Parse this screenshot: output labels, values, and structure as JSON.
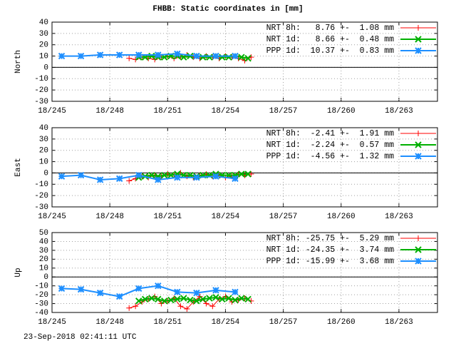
{
  "title": "FHBB: Static coordinates in [mm]",
  "footer": "23-Sep-2018 02:41:11 UTC",
  "chart_data": [
    {
      "type": "line",
      "ylabel": "North",
      "grid": true,
      "zeroaxis": true,
      "xlim": [
        245,
        265
      ],
      "ylim": [
        -30,
        40
      ],
      "xticks": [
        {
          "value": 245,
          "label": "18/245"
        },
        {
          "value": 248,
          "label": "18/248"
        },
        {
          "value": 251,
          "label": "18/251"
        },
        {
          "value": 254,
          "label": "18/254"
        },
        {
          "value": 257,
          "label": "18/257"
        },
        {
          "value": 260,
          "label": "18/260"
        },
        {
          "value": 263,
          "label": "18/263"
        }
      ],
      "yticks": [
        -30,
        -20,
        -10,
        0,
        10,
        20,
        30,
        40
      ],
      "series": [
        {
          "name": "NRT 8h:   8.76 +-  1.08 mm",
          "color": "#ff0000",
          "marker": "plus",
          "x": [
            249,
            249.33,
            249.67,
            250,
            250.33,
            250.67,
            251,
            251.33,
            251.67,
            252,
            252.33,
            252.67,
            253,
            253.33,
            253.67,
            254,
            254.33,
            254.67,
            255,
            255.33
          ],
          "values": [
            8,
            7,
            9,
            8,
            7,
            9,
            10,
            8,
            9,
            11,
            9,
            8,
            10,
            9,
            8,
            10,
            9,
            8,
            6,
            9
          ]
        },
        {
          "name": "NRT 1d:   8.66 +-  0.48 mm",
          "color": "#00b000",
          "marker": "cross",
          "x": [
            249.5,
            249.83,
            250.17,
            250.5,
            250.83,
            251.17,
            251.5,
            251.83,
            252.17,
            252.5,
            252.83,
            253.17,
            253.5,
            253.83,
            254.17,
            254.5,
            254.83,
            255.17
          ],
          "values": [
            9,
            9,
            10,
            9,
            9,
            10,
            10,
            9,
            10,
            10,
            9,
            9,
            10,
            9,
            9,
            10,
            9,
            8
          ]
        },
        {
          "name": "PPP 1d:  10.37 +-  0.83 mm",
          "color": "#1e8fff",
          "marker": "star",
          "x": [
            245.5,
            246.5,
            247.5,
            248.5,
            249.5,
            250.5,
            251.5,
            252.5,
            253.5,
            254.5
          ],
          "values": [
            10,
            10,
            11,
            11,
            11,
            11,
            12,
            10,
            10,
            10
          ]
        }
      ]
    },
    {
      "type": "line",
      "ylabel": "East",
      "grid": true,
      "zeroaxis": true,
      "xlim": [
        245,
        265
      ],
      "ylim": [
        -30,
        40
      ],
      "xticks": [
        {
          "value": 245,
          "label": "18/245"
        },
        {
          "value": 248,
          "label": "18/248"
        },
        {
          "value": 251,
          "label": "18/251"
        },
        {
          "value": 254,
          "label": "18/254"
        },
        {
          "value": 257,
          "label": "18/257"
        },
        {
          "value": 260,
          "label": "18/260"
        },
        {
          "value": 263,
          "label": "18/263"
        }
      ],
      "yticks": [
        -30,
        -20,
        -10,
        0,
        10,
        20,
        30,
        40
      ],
      "series": [
        {
          "name": "NRT 8h:  -2.41 +-  1.91 mm",
          "color": "#ff0000",
          "marker": "plus",
          "x": [
            249,
            249.33,
            249.67,
            250,
            250.33,
            250.67,
            251,
            251.33,
            251.67,
            252,
            252.33,
            252.67,
            253,
            253.33,
            253.67,
            254,
            254.33,
            254.67,
            255,
            255.33
          ],
          "values": [
            -7,
            -5,
            -3,
            -4,
            -2,
            -3,
            -1,
            -2,
            0,
            -3,
            -4,
            -2,
            -1,
            -3,
            -2,
            -4,
            -3,
            -1,
            -2,
            -1
          ]
        },
        {
          "name": "NRT 1d:  -2.24 +-  0.57 mm",
          "color": "#00b000",
          "marker": "cross",
          "x": [
            249.5,
            249.83,
            250.17,
            250.5,
            250.83,
            251.17,
            251.5,
            251.83,
            252.17,
            252.5,
            252.83,
            253.17,
            253.5,
            253.83,
            254.17,
            254.5,
            254.83,
            255.17
          ],
          "values": [
            -4,
            -3,
            -2,
            -3,
            -2,
            -2,
            -1,
            -2,
            -2,
            -3,
            -2,
            -2,
            -1,
            -2,
            -2,
            -2,
            -1,
            -1
          ]
        },
        {
          "name": "PPP 1d:  -4.56 +-  1.32 mm",
          "color": "#1e8fff",
          "marker": "star",
          "x": [
            245.5,
            246.5,
            247.5,
            248.5,
            249.5,
            250.5,
            251.5,
            252.5,
            253.5,
            254.5
          ],
          "values": [
            -3,
            -2,
            -6,
            -5,
            -2,
            -6,
            -4,
            -4,
            -3,
            -5
          ]
        }
      ]
    },
    {
      "type": "line",
      "ylabel": "Up",
      "grid": true,
      "zeroaxis": true,
      "xlim": [
        245,
        265
      ],
      "ylim": [
        -40,
        50
      ],
      "xticks": [
        {
          "value": 245,
          "label": "18/245"
        },
        {
          "value": 248,
          "label": "18/248"
        },
        {
          "value": 251,
          "label": "18/251"
        },
        {
          "value": 254,
          "label": "18/254"
        },
        {
          "value": 257,
          "label": "18/257"
        },
        {
          "value": 260,
          "label": "18/260"
        },
        {
          "value": 263,
          "label": "18/263"
        }
      ],
      "yticks": [
        -40,
        -30,
        -20,
        -10,
        0,
        10,
        20,
        30,
        40,
        50
      ],
      "series": [
        {
          "name": "NRT 8h: -25.75 +-  5.29 mm",
          "color": "#ff0000",
          "marker": "plus",
          "x": [
            249,
            249.33,
            249.67,
            250,
            250.33,
            250.67,
            251,
            251.33,
            251.67,
            252,
            252.33,
            252.67,
            253,
            253.33,
            253.67,
            254,
            254.33,
            254.67,
            255,
            255.33
          ],
          "values": [
            -35,
            -33,
            -28,
            -25,
            -22,
            -30,
            -27,
            -24,
            -33,
            -36,
            -28,
            -22,
            -30,
            -33,
            -25,
            -22,
            -28,
            -26,
            -24,
            -27
          ]
        },
        {
          "name": "NRT 1d: -24.35 +-  3.74 mm",
          "color": "#00b000",
          "marker": "cross",
          "x": [
            249.5,
            249.83,
            250.17,
            250.5,
            250.83,
            251.17,
            251.5,
            251.83,
            252.17,
            252.5,
            252.83,
            253.17,
            253.5,
            253.83,
            254.17,
            254.5,
            254.83,
            255.17
          ],
          "values": [
            -27,
            -25,
            -24,
            -25,
            -27,
            -26,
            -25,
            -24,
            -26,
            -27,
            -25,
            -24,
            -23,
            -25,
            -24,
            -26,
            -24,
            -25
          ]
        },
        {
          "name": "PPP 1d: -15.99 +-  3.68 mm",
          "color": "#1e8fff",
          "marker": "star",
          "x": [
            245.5,
            246.5,
            247.5,
            248.5,
            249.5,
            250.5,
            251.5,
            252.5,
            253.5,
            254.5
          ],
          "values": [
            -13,
            -14,
            -18,
            -22,
            -13,
            -10,
            -17,
            -18,
            -15,
            -17
          ]
        }
      ]
    }
  ]
}
